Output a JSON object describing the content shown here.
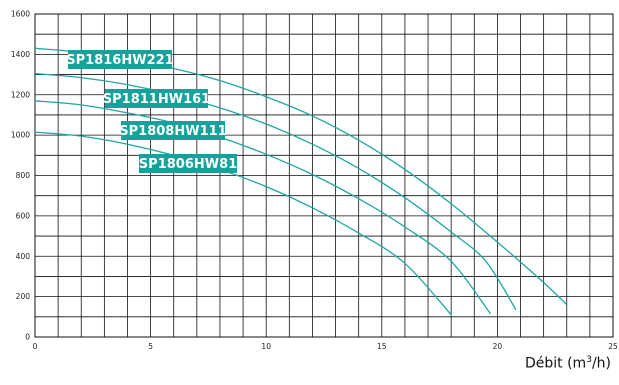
{
  "chart_data": {
    "type": "line",
    "title": "",
    "xlabel_text": "Débit (m",
    "xlabel_sup": "3",
    "xlabel_tail": "/h)",
    "ylabel": "",
    "xlim": [
      0,
      25
    ],
    "ylim": [
      0,
      1600
    ],
    "xticks": [
      0,
      5,
      10,
      15,
      20,
      25
    ],
    "yticks": [
      0,
      200,
      400,
      600,
      800,
      1000,
      1200,
      1400,
      1600
    ],
    "grid": true,
    "colors": {
      "curve": "#1fa7a0",
      "label_bg": "#14a39a",
      "label_text": "#ffffff",
      "grid": "#111111"
    },
    "series": [
      {
        "name": "SP1816HW221",
        "x": [
          0,
          2,
          4,
          6,
          8,
          10,
          12,
          14,
          16,
          18,
          20,
          22,
          23
        ],
        "values": [
          1430,
          1410,
          1375,
          1330,
          1270,
          1190,
          1095,
          975,
          830,
          660,
          470,
          270,
          160
        ]
      },
      {
        "name": "SP1811HW161",
        "x": [
          0,
          2,
          4,
          6,
          8,
          10,
          12,
          14,
          16,
          18,
          19.5,
          20.8
        ],
        "values": [
          1305,
          1285,
          1250,
          1200,
          1135,
          1055,
          955,
          835,
          690,
          520,
          375,
          135
        ]
      },
      {
        "name": "SP1808HW111",
        "x": [
          0,
          2,
          4,
          6,
          8,
          10,
          12,
          14,
          16,
          18,
          19.7
        ],
        "values": [
          1170,
          1150,
          1110,
          1060,
          990,
          905,
          805,
          685,
          545,
          375,
          115
        ]
      },
      {
        "name": "SP1806HW81",
        "x": [
          0,
          2,
          4,
          6,
          8,
          10,
          12,
          14,
          16,
          18
        ],
        "values": [
          1015,
          995,
          955,
          900,
          830,
          745,
          640,
          515,
          365,
          110
        ]
      }
    ]
  }
}
